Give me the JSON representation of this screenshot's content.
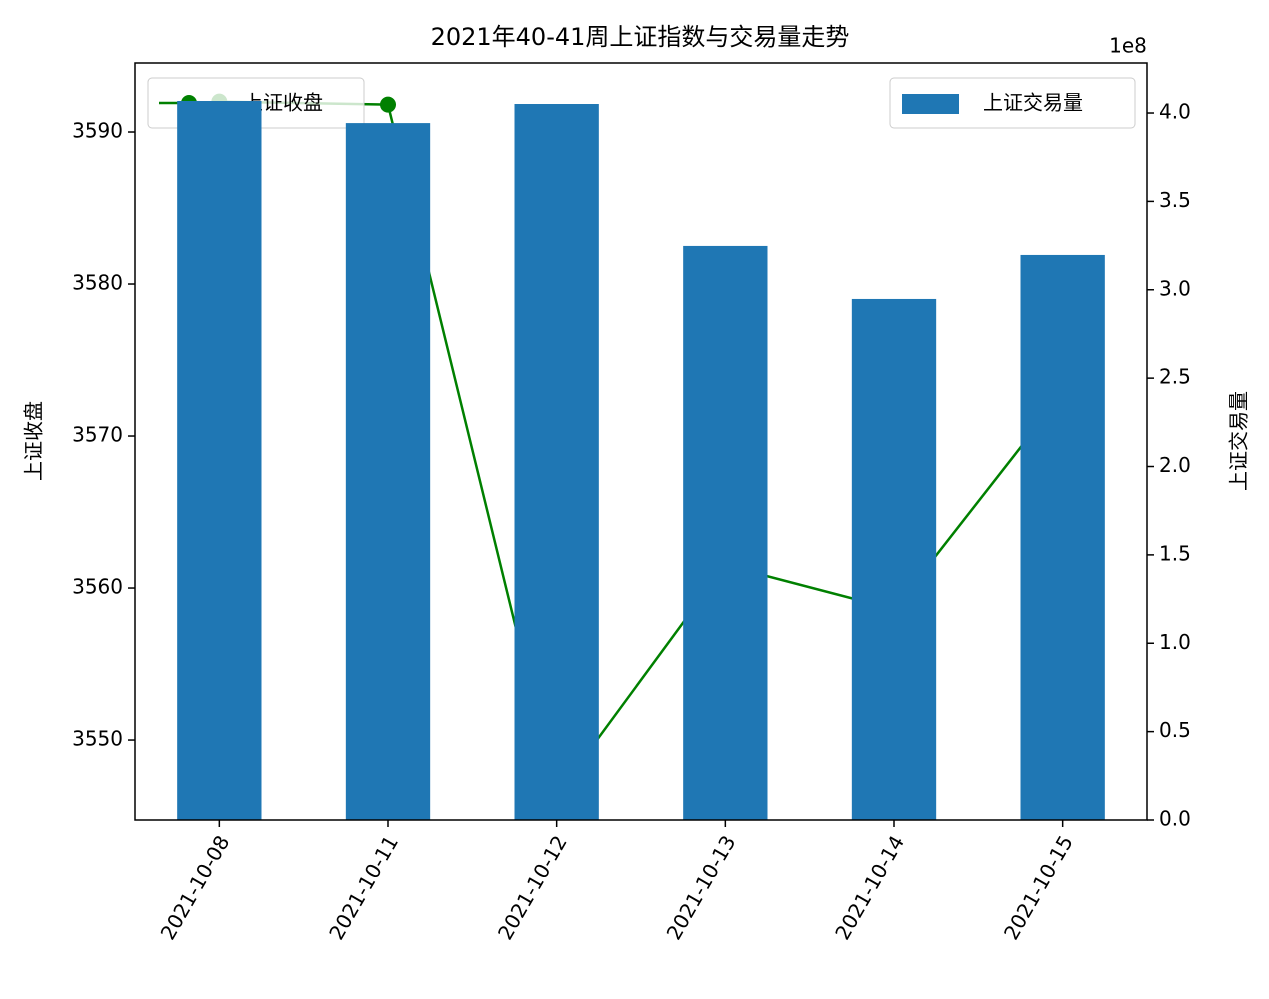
{
  "chart_data": {
    "type": "bar_line",
    "title": "2021年40-41周上证指数与交易量走势",
    "ylabel": "上证收盘",
    "y2label": "上证交易量",
    "y2_offset_label": "1e8",
    "categories": [
      "2021-10-08",
      "2021-10-11",
      "2021-10-12",
      "2021-10-13",
      "2021-10-14",
      "2021-10-15"
    ],
    "series": [
      {
        "name": "上证收盘",
        "type": "line",
        "color": "#008000",
        "axis": "y",
        "values": [
          3592.0,
          3591.8,
          3546.4,
          3561.5,
          3558.6,
          3572.8
        ]
      },
      {
        "name": "上证交易量",
        "type": "bar",
        "color": "#1f77b4",
        "axis": "y2",
        "values": [
          4.068,
          3.943,
          4.051,
          3.248,
          2.948,
          3.197
        ]
      }
    ],
    "ylim": [
      3544.74,
      3594.54
    ],
    "yticks": [
      3550,
      3560,
      3570,
      3580,
      3590
    ],
    "y2lim": [
      0,
      4.283
    ],
    "y2ticks": [
      {
        "value": 0,
        "label": "0.0"
      },
      0.5,
      {
        "value": 1,
        "label": "1.0"
      },
      1.5,
      {
        "value": 2,
        "label": "2.0"
      },
      2.5,
      {
        "value": 3,
        "label": "3.0"
      },
      3.5,
      {
        "value": 4,
        "label": "4.0"
      }
    ],
    "legend_line": "upper left",
    "legend_bar": "upper right"
  }
}
